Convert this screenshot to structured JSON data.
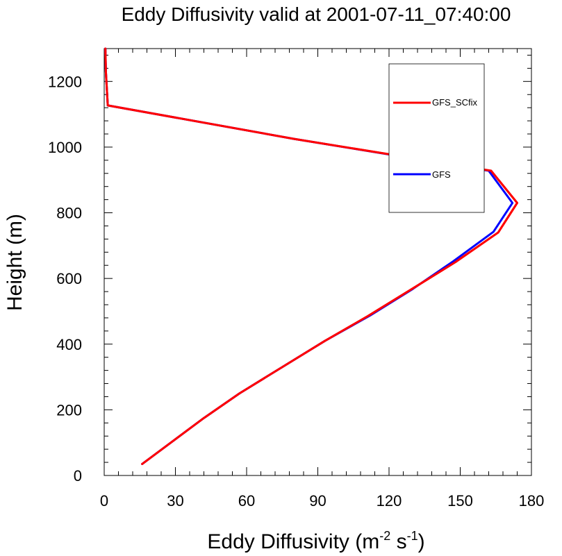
{
  "chart_data": {
    "type": "line",
    "title": "Eddy Diffusivity valid at 2001-07-11_07:40:00",
    "xlabel": {
      "main": "Eddy Diffusivity (m",
      "sup1": "-2",
      "mid": " s",
      "sup2": "-1",
      "end": ")"
    },
    "ylabel": "Height (m)",
    "xlim": [
      0,
      180
    ],
    "ylim": [
      0,
      1300
    ],
    "xticks": [
      0,
      30,
      60,
      90,
      120,
      150,
      180
    ],
    "yticks": [
      0,
      200,
      400,
      600,
      800,
      1000,
      1200
    ],
    "grid": false,
    "legend_position": "top-right",
    "series": [
      {
        "name": "GFS_SCfix",
        "color": "#ff0000",
        "points": [
          [
            16,
            35
          ],
          [
            29,
            105
          ],
          [
            42,
            175
          ],
          [
            57,
            250
          ],
          [
            75,
            330
          ],
          [
            93,
            410
          ],
          [
            111,
            485
          ],
          [
            129,
            565
          ],
          [
            148,
            650
          ],
          [
            166,
            740
          ],
          [
            174,
            830
          ],
          [
            163,
            928
          ],
          [
            80,
            1025
          ],
          [
            1.5,
            1127
          ],
          [
            0.7,
            1230
          ],
          [
            0.5,
            1300
          ]
        ]
      },
      {
        "name": "GFS",
        "color": "#0000ff",
        "points": [
          [
            16,
            35
          ],
          [
            29,
            105
          ],
          [
            42,
            175
          ],
          [
            57,
            250
          ],
          [
            75,
            330
          ],
          [
            93,
            410
          ],
          [
            112,
            487
          ],
          [
            130,
            568
          ],
          [
            147,
            652
          ],
          [
            164,
            742
          ],
          [
            172,
            830
          ],
          [
            162,
            928
          ],
          [
            80,
            1025
          ],
          [
            1.5,
            1127
          ],
          [
            0.7,
            1230
          ],
          [
            0.5,
            1300
          ]
        ]
      }
    ],
    "legend_order": [
      "GFS_SCfix",
      "GFS"
    ]
  }
}
